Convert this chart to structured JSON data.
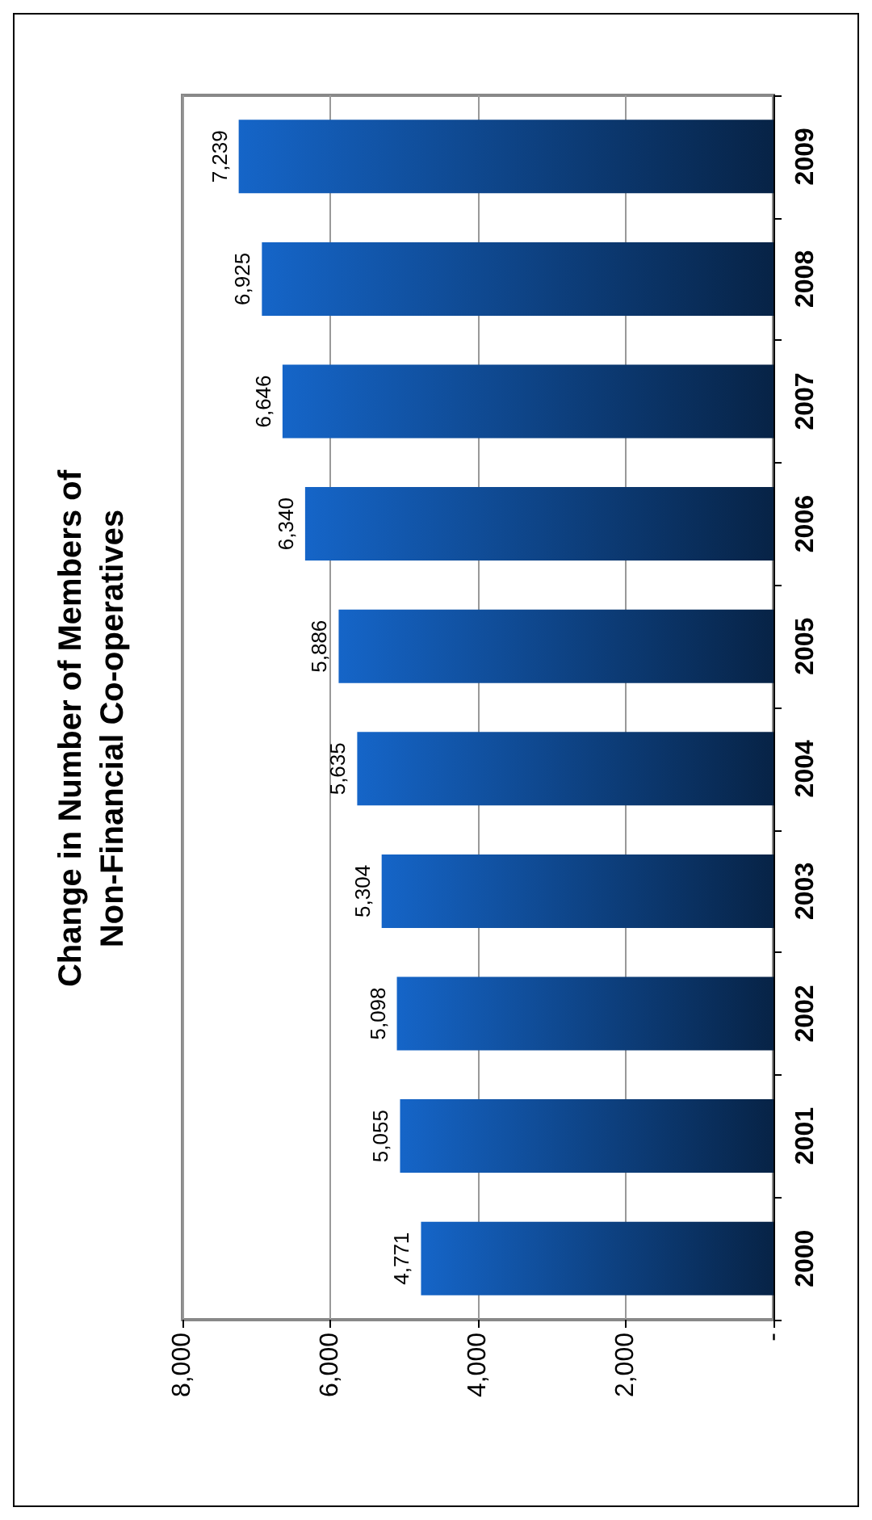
{
  "chart_data": {
    "type": "bar",
    "orientation": "horizontal",
    "title": "Change in Number of Members of\nNon-Financial Co-operatives",
    "categories": [
      "2009",
      "2008",
      "2007",
      "2006",
      "2005",
      "2004",
      "2003",
      "2002",
      "2001",
      "2000"
    ],
    "values": [
      7239,
      6925,
      6646,
      6340,
      5886,
      5635,
      5304,
      5098,
      5055,
      4771
    ],
    "color": "#1565c8",
    "xlim": [
      8000,
      0
    ],
    "xticks": [
      {
        "value": 8000,
        "label": "8,000"
      },
      {
        "value": 6000,
        "label": "6,000"
      },
      {
        "value": 4000,
        "label": "4,000"
      },
      {
        "value": 2000,
        "label": "2,000"
      },
      {
        "value": 0,
        "label": "-"
      }
    ],
    "value_labels": [
      "7,239",
      "6,925",
      "6,646",
      "6,340",
      "5,886",
      "5,635",
      "5,304",
      "5,098",
      "5,055",
      "4,771"
    ],
    "grid": "x"
  }
}
